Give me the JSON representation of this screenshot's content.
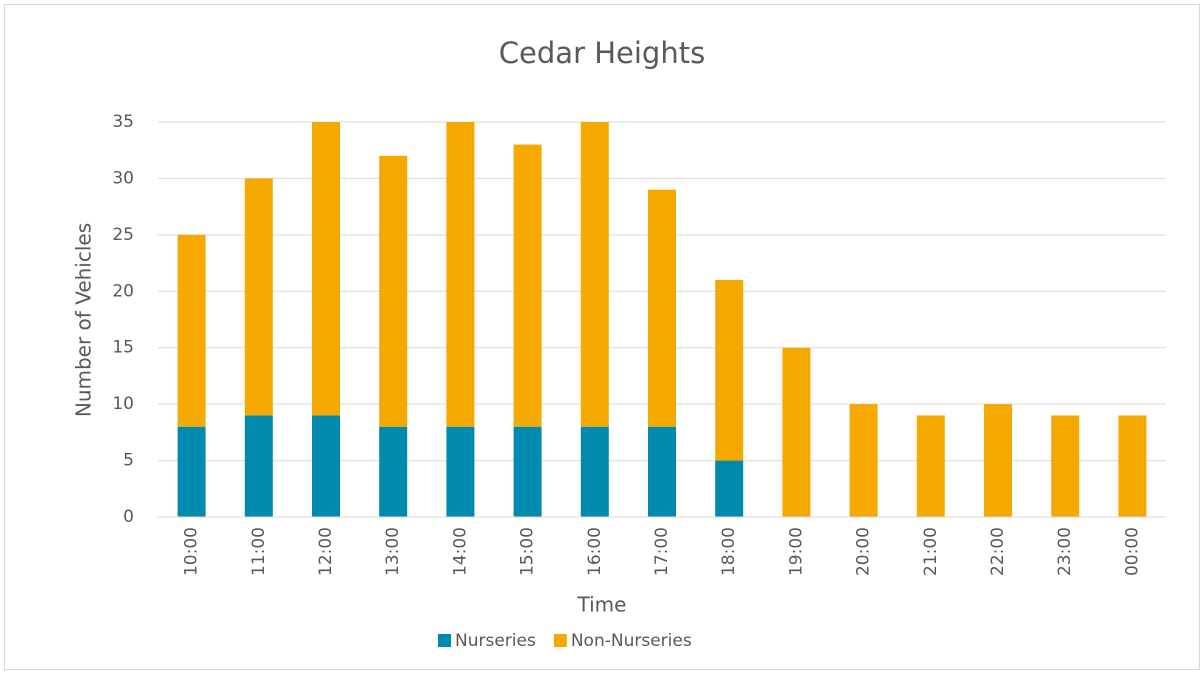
{
  "chart_data": {
    "type": "stacked-bar",
    "title": "Cedar Heights",
    "x_label": "Time",
    "y_label": "Number of Vehicles",
    "categories": [
      "10:00",
      "11:00",
      "12:00",
      "13:00",
      "14:00",
      "15:00",
      "16:00",
      "17:00",
      "18:00",
      "19:00",
      "20:00",
      "21:00",
      "22:00",
      "23:00",
      "00:00"
    ],
    "series": [
      {
        "name": "Nurseries",
        "color": "#008aad",
        "values": [
          8,
          9,
          9,
          8,
          8,
          8,
          8,
          8,
          5,
          0,
          0,
          0,
          0,
          0,
          0
        ]
      },
      {
        "name": "Non-Nurseries",
        "color": "#f5a800",
        "values": [
          17,
          21,
          26,
          24,
          27,
          25,
          27,
          21,
          16,
          15,
          10,
          9,
          10,
          9,
          9
        ]
      }
    ],
    "ylim": [
      0,
      35
    ],
    "yticks": [
      0,
      5,
      10,
      15,
      20,
      25,
      30,
      35
    ],
    "grid": true,
    "legend": "bottom"
  }
}
